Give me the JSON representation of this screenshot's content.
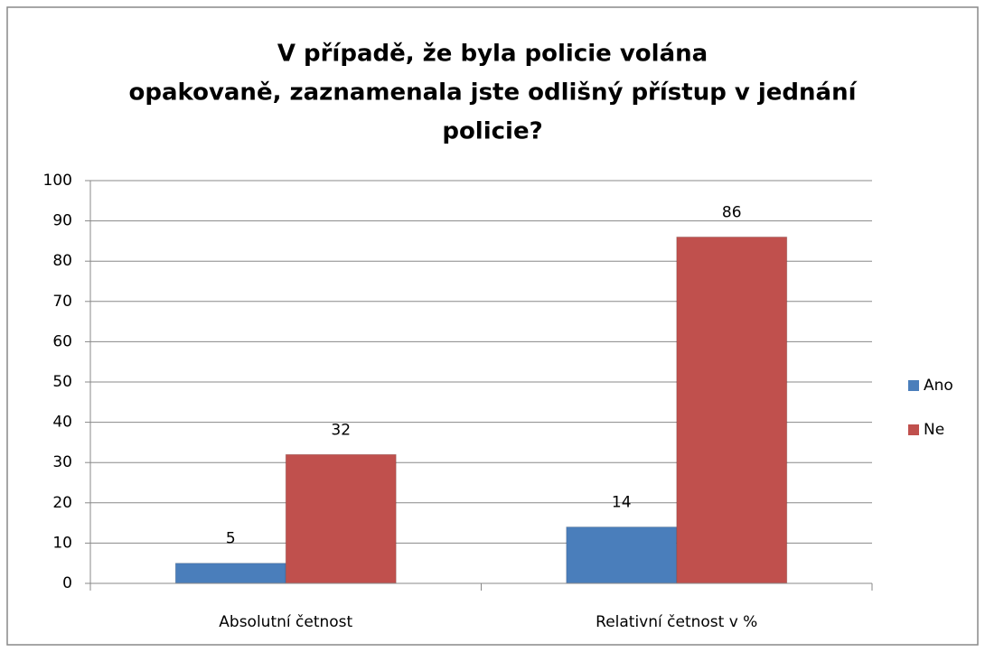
{
  "chart_data": {
    "type": "bar",
    "title": [
      "V případě, že byla policie volána",
      "opakovaně, zaznamenala jste odlišný přístup v jednání",
      "policie?"
    ],
    "categories": [
      "Absolutní četnost",
      "Relativní četnost v %"
    ],
    "series": [
      {
        "name": "Ano",
        "color": "#4a7ebb",
        "values": [
          5,
          14
        ]
      },
      {
        "name": "Ne",
        "color": "#c0504d",
        "values": [
          32,
          86
        ]
      }
    ],
    "ylim": [
      0,
      100
    ],
    "yticks": [
      0,
      10,
      20,
      30,
      40,
      50,
      60,
      70,
      80,
      90,
      100
    ],
    "grid": true,
    "legend": "right"
  }
}
